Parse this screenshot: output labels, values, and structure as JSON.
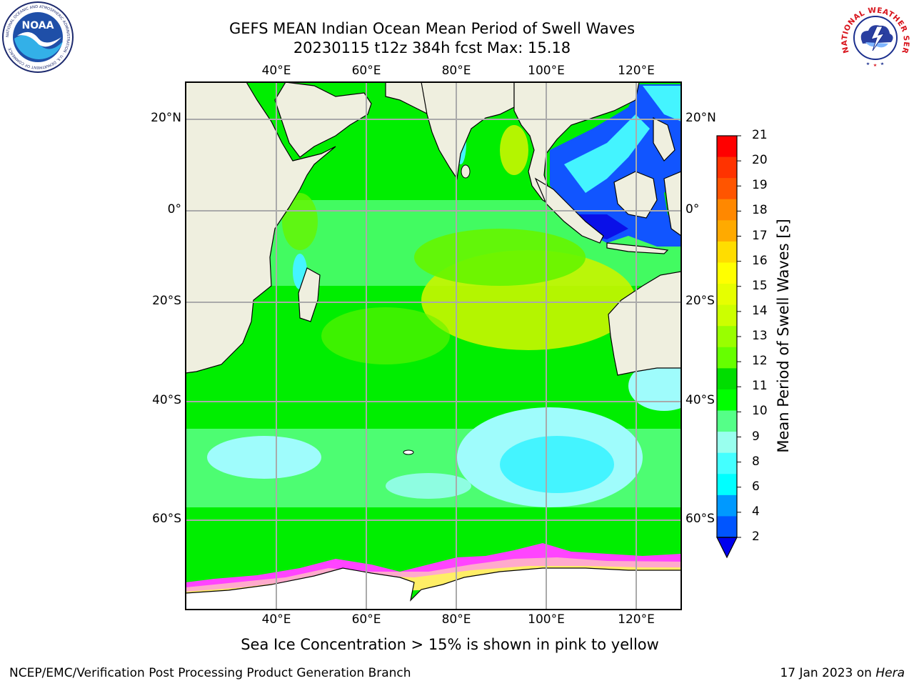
{
  "header": {
    "title": "GEFS MEAN Indian Ocean Mean Period of Swell Waves",
    "subtitle": "20230115 t12z 384h fcst   Max: 15.18"
  },
  "map": {
    "lon_labels": [
      "40°E",
      "60°E",
      "80°E",
      "100°E",
      "120°E"
    ],
    "lat_labels": [
      "20°N",
      "0°",
      "20°S",
      "40°S",
      "60°S"
    ],
    "land_color": "#efefdf",
    "field_colors": {
      "light_green": "#4dfd72",
      "green": "#00ee00",
      "lime": "#66f500",
      "yellow_green": "#c8f500",
      "light_cyan": "#9ffcfc",
      "cyan": "#44f4ff",
      "blue": "#1155ff",
      "deep_blue": "#0a10e8"
    },
    "ice_colors": [
      "#ff44ff",
      "#ffaacc",
      "#ffee66"
    ]
  },
  "colorbar": {
    "label": "Mean Period of Swell Waves [s]",
    "ticks": [
      "21",
      "20",
      "19",
      "18",
      "17",
      "16",
      "15",
      "14",
      "13",
      "12",
      "11",
      "10",
      "9",
      "8",
      "6",
      "4",
      "2"
    ],
    "colors": [
      "#ff0000",
      "#ff3300",
      "#ff5500",
      "#ff8800",
      "#ffaa00",
      "#ffdd00",
      "#ffff00",
      "#e6ff00",
      "#ccff00",
      "#99ff00",
      "#66ff00",
      "#00dd00",
      "#00ff00",
      "#55ff88",
      "#99ffee",
      "#44ffff",
      "#00ffff",
      "#0099ff",
      "#0055ff"
    ],
    "extend_color": "#0000ee"
  },
  "ice_note": "Sea Ice Concentration > 15% is shown in pink to yellow",
  "footer": {
    "left": "NCEP/EMC/Verification Post Processing Product Generation Branch",
    "right_prefix": "17 Jan 2023 on ",
    "right_host": "Hera"
  },
  "logos": {
    "noaa_text": "NOAA",
    "noaa_ring": "NATIONAL OCEANIC AND ATMOSPHERIC ADMINISTRATION · U.S. DEPARTMENT OF COMMERCE",
    "nws_ring": "NATIONAL WEATHER SERVICE"
  }
}
